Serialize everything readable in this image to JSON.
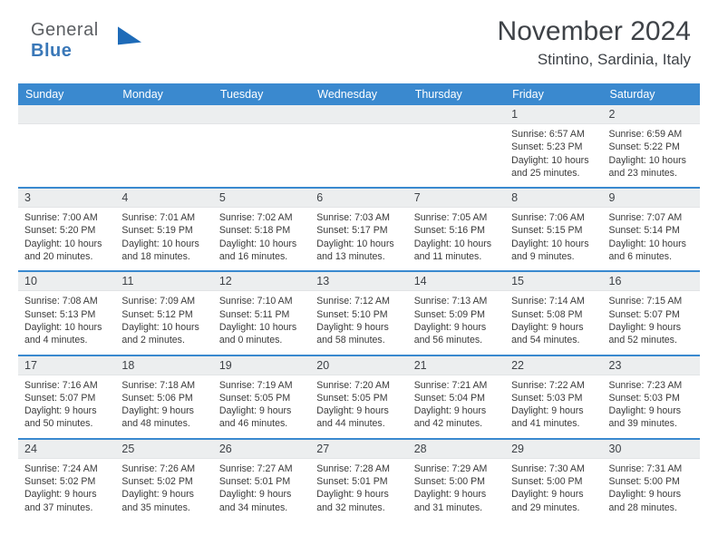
{
  "logo": {
    "word1": "General",
    "word2": "Blue"
  },
  "title": "November 2024",
  "subtitle": "Stintino, Sardinia, Italy",
  "colors": {
    "header_bg": "#3a89cf",
    "header_fg": "#ffffff",
    "daynum_bg": "#eceeef",
    "sep_line": "#3a89cf",
    "text": "#3a3a3a"
  },
  "weekdays": [
    "Sunday",
    "Monday",
    "Tuesday",
    "Wednesday",
    "Thursday",
    "Friday",
    "Saturday"
  ],
  "weeks": [
    [
      null,
      null,
      null,
      null,
      null,
      {
        "n": "1",
        "sunrise": "Sunrise: 6:57 AM",
        "sunset": "Sunset: 5:23 PM",
        "daylight": "Daylight: 10 hours and 25 minutes."
      },
      {
        "n": "2",
        "sunrise": "Sunrise: 6:59 AM",
        "sunset": "Sunset: 5:22 PM",
        "daylight": "Daylight: 10 hours and 23 minutes."
      }
    ],
    [
      {
        "n": "3",
        "sunrise": "Sunrise: 7:00 AM",
        "sunset": "Sunset: 5:20 PM",
        "daylight": "Daylight: 10 hours and 20 minutes."
      },
      {
        "n": "4",
        "sunrise": "Sunrise: 7:01 AM",
        "sunset": "Sunset: 5:19 PM",
        "daylight": "Daylight: 10 hours and 18 minutes."
      },
      {
        "n": "5",
        "sunrise": "Sunrise: 7:02 AM",
        "sunset": "Sunset: 5:18 PM",
        "daylight": "Daylight: 10 hours and 16 minutes."
      },
      {
        "n": "6",
        "sunrise": "Sunrise: 7:03 AM",
        "sunset": "Sunset: 5:17 PM",
        "daylight": "Daylight: 10 hours and 13 minutes."
      },
      {
        "n": "7",
        "sunrise": "Sunrise: 7:05 AM",
        "sunset": "Sunset: 5:16 PM",
        "daylight": "Daylight: 10 hours and 11 minutes."
      },
      {
        "n": "8",
        "sunrise": "Sunrise: 7:06 AM",
        "sunset": "Sunset: 5:15 PM",
        "daylight": "Daylight: 10 hours and 9 minutes."
      },
      {
        "n": "9",
        "sunrise": "Sunrise: 7:07 AM",
        "sunset": "Sunset: 5:14 PM",
        "daylight": "Daylight: 10 hours and 6 minutes."
      }
    ],
    [
      {
        "n": "10",
        "sunrise": "Sunrise: 7:08 AM",
        "sunset": "Sunset: 5:13 PM",
        "daylight": "Daylight: 10 hours and 4 minutes."
      },
      {
        "n": "11",
        "sunrise": "Sunrise: 7:09 AM",
        "sunset": "Sunset: 5:12 PM",
        "daylight": "Daylight: 10 hours and 2 minutes."
      },
      {
        "n": "12",
        "sunrise": "Sunrise: 7:10 AM",
        "sunset": "Sunset: 5:11 PM",
        "daylight": "Daylight: 10 hours and 0 minutes."
      },
      {
        "n": "13",
        "sunrise": "Sunrise: 7:12 AM",
        "sunset": "Sunset: 5:10 PM",
        "daylight": "Daylight: 9 hours and 58 minutes."
      },
      {
        "n": "14",
        "sunrise": "Sunrise: 7:13 AM",
        "sunset": "Sunset: 5:09 PM",
        "daylight": "Daylight: 9 hours and 56 minutes."
      },
      {
        "n": "15",
        "sunrise": "Sunrise: 7:14 AM",
        "sunset": "Sunset: 5:08 PM",
        "daylight": "Daylight: 9 hours and 54 minutes."
      },
      {
        "n": "16",
        "sunrise": "Sunrise: 7:15 AM",
        "sunset": "Sunset: 5:07 PM",
        "daylight": "Daylight: 9 hours and 52 minutes."
      }
    ],
    [
      {
        "n": "17",
        "sunrise": "Sunrise: 7:16 AM",
        "sunset": "Sunset: 5:07 PM",
        "daylight": "Daylight: 9 hours and 50 minutes."
      },
      {
        "n": "18",
        "sunrise": "Sunrise: 7:18 AM",
        "sunset": "Sunset: 5:06 PM",
        "daylight": "Daylight: 9 hours and 48 minutes."
      },
      {
        "n": "19",
        "sunrise": "Sunrise: 7:19 AM",
        "sunset": "Sunset: 5:05 PM",
        "daylight": "Daylight: 9 hours and 46 minutes."
      },
      {
        "n": "20",
        "sunrise": "Sunrise: 7:20 AM",
        "sunset": "Sunset: 5:05 PM",
        "daylight": "Daylight: 9 hours and 44 minutes."
      },
      {
        "n": "21",
        "sunrise": "Sunrise: 7:21 AM",
        "sunset": "Sunset: 5:04 PM",
        "daylight": "Daylight: 9 hours and 42 minutes."
      },
      {
        "n": "22",
        "sunrise": "Sunrise: 7:22 AM",
        "sunset": "Sunset: 5:03 PM",
        "daylight": "Daylight: 9 hours and 41 minutes."
      },
      {
        "n": "23",
        "sunrise": "Sunrise: 7:23 AM",
        "sunset": "Sunset: 5:03 PM",
        "daylight": "Daylight: 9 hours and 39 minutes."
      }
    ],
    [
      {
        "n": "24",
        "sunrise": "Sunrise: 7:24 AM",
        "sunset": "Sunset: 5:02 PM",
        "daylight": "Daylight: 9 hours and 37 minutes."
      },
      {
        "n": "25",
        "sunrise": "Sunrise: 7:26 AM",
        "sunset": "Sunset: 5:02 PM",
        "daylight": "Daylight: 9 hours and 35 minutes."
      },
      {
        "n": "26",
        "sunrise": "Sunrise: 7:27 AM",
        "sunset": "Sunset: 5:01 PM",
        "daylight": "Daylight: 9 hours and 34 minutes."
      },
      {
        "n": "27",
        "sunrise": "Sunrise: 7:28 AM",
        "sunset": "Sunset: 5:01 PM",
        "daylight": "Daylight: 9 hours and 32 minutes."
      },
      {
        "n": "28",
        "sunrise": "Sunrise: 7:29 AM",
        "sunset": "Sunset: 5:00 PM",
        "daylight": "Daylight: 9 hours and 31 minutes."
      },
      {
        "n": "29",
        "sunrise": "Sunrise: 7:30 AM",
        "sunset": "Sunset: 5:00 PM",
        "daylight": "Daylight: 9 hours and 29 minutes."
      },
      {
        "n": "30",
        "sunrise": "Sunrise: 7:31 AM",
        "sunset": "Sunset: 5:00 PM",
        "daylight": "Daylight: 9 hours and 28 minutes."
      }
    ]
  ]
}
